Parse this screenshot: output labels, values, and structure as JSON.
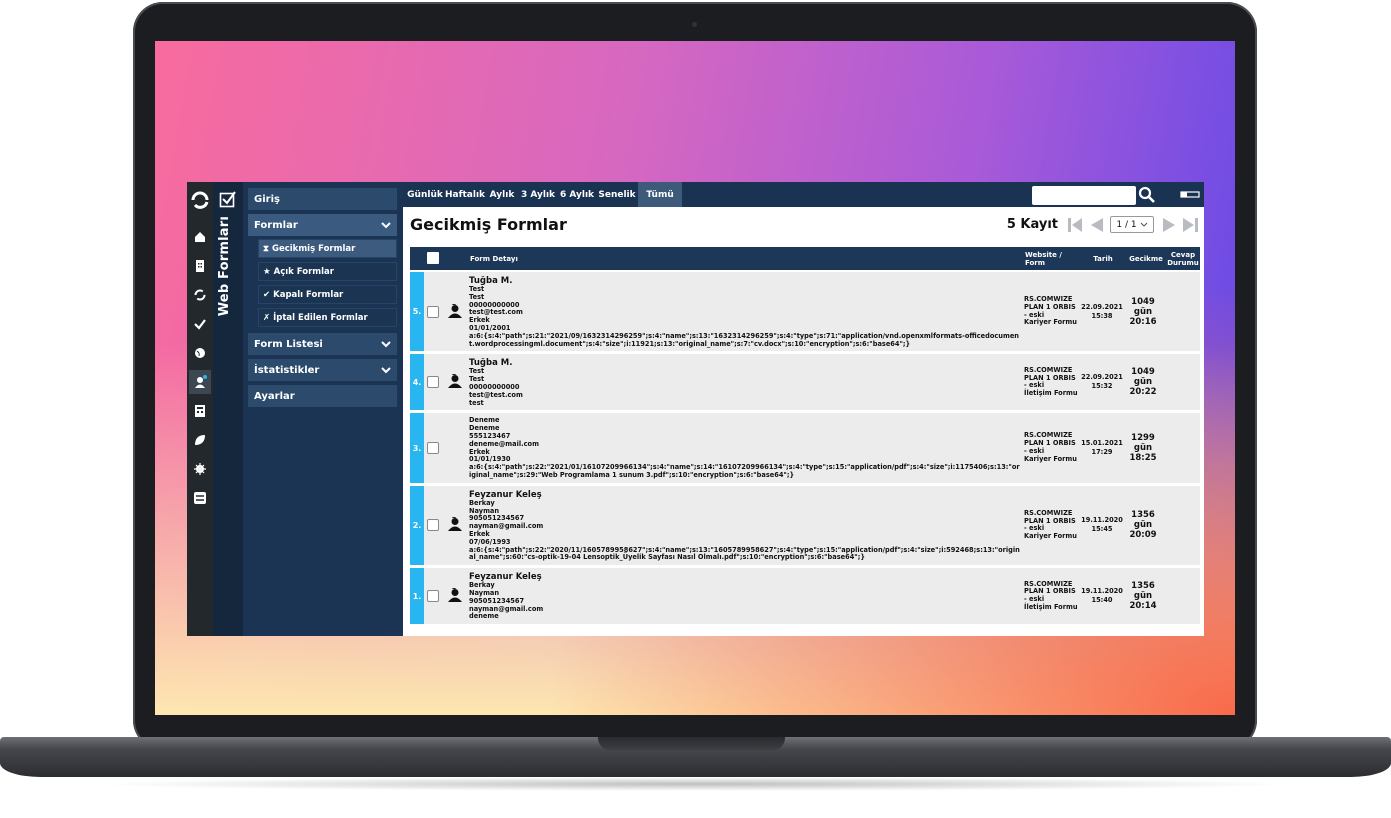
{
  "sidebar": {
    "title": "Web Formları",
    "menu": [
      {
        "label": "Giriş",
        "expandable": false
      },
      {
        "label": "Formlar",
        "expandable": true,
        "open": true,
        "items": [
          {
            "icon": "⧗",
            "label": "Gecikmiş Formlar",
            "active": true
          },
          {
            "icon": "★",
            "label": "Açık Formlar"
          },
          {
            "icon": "✔",
            "label": "Kapalı Formlar"
          },
          {
            "icon": "✗",
            "label": "İptal Edilen Formlar"
          }
        ]
      },
      {
        "label": "Form Listesi",
        "expandable": true
      },
      {
        "label": "İstatistikler",
        "expandable": true
      },
      {
        "label": "Ayarlar",
        "expandable": false
      }
    ]
  },
  "tabs": {
    "items": [
      "Günlük",
      "Haftalık",
      "Aylık",
      "3 Aylık",
      "6 Aylık",
      "Senelik",
      "Tümü"
    ],
    "active": 6
  },
  "header": {
    "title": "Gecikmiş Formlar",
    "count": "5 Kayıt",
    "page": "1 / 1"
  },
  "table": {
    "columns": [
      "Form Detayı",
      "Website / Form",
      "Tarih",
      "Gecikme",
      "Cevap Durumu"
    ],
    "rows": [
      {
        "index": "5.",
        "name": "Tuğba M.",
        "lines": [
          "Test",
          "Test",
          "00000000000",
          "test@test.com",
          "Erkek",
          "01/01/2001",
          "a:6:{s:4:\"path\";s:21:\"2021/09/1632314296259\";s:4:\"name\";s:13:\"1632314296259\";s:4:\"type\";s:71:\"application/vnd.openxmlformats-officedocument.wordprocessingml.document\";s:4:\"size\";i:11921;s:13:\"original_name\";s:7:\"cv.docx\";s:10:\"encryption\";s:6:\"base64\";}"
        ],
        "website": [
          "RS.COMWIZE",
          "PLAN 1 ORBIS",
          "- eski",
          "Kariyer Formu"
        ],
        "date": [
          "22.09.2021",
          "15:38"
        ],
        "delay": [
          "1049",
          "gün",
          "20:16"
        ]
      },
      {
        "index": "4.",
        "name": "Tuğba M.",
        "lines": [
          "Test",
          "Test",
          "00000000000",
          "test@test.com",
          "test"
        ],
        "website": [
          "RS.COMWIZE",
          "PLAN 1 ORBIS",
          "- eski",
          "İletişim Formu"
        ],
        "date": [
          "22.09.2021",
          "15:32"
        ],
        "delay": [
          "1049",
          "gün",
          "20:22"
        ]
      },
      {
        "index": "3.",
        "name": null,
        "lines": [
          "Deneme",
          "Deneme",
          "555123467",
          "deneme@mail.com",
          "Erkek",
          "01/01/1930",
          "a:6:{s:4:\"path\";s:22:\"2021/01/16107209966134\";s:4:\"name\";s:14:\"16107209966134\";s:4:\"type\";s:15:\"application/pdf\";s:4:\"size\";i:1175406;s:13:\"original_name\";s:29:\"Web Programlama 1 sunum 3.pdf\";s:10:\"encryption\";s:6:\"base64\";}"
        ],
        "website": [
          "RS.COMWIZE",
          "PLAN 1 ORBIS",
          "- eski",
          "Kariyer Formu"
        ],
        "date": [
          "15.01.2021",
          "17:29"
        ],
        "delay": [
          "1299",
          "gün",
          "18:25"
        ]
      },
      {
        "index": "2.",
        "name": "Feyzanur Keleş",
        "lines": [
          "Berkay",
          "Nayman",
          "905051234567",
          "nayman@gmail.com",
          "Erkek",
          "07/06/1993",
          "a:6:{s:4:\"path\";s:22:\"2020/11/1605789958627\";s:4:\"name\";s:13:\"1605789958627\";s:4:\"type\";s:15:\"application/pdf\";s:4:\"size\";i:592468;s:13:\"original_name\";s:60:\"cs-optik-19-04 Lensoptik_Üyelik Sayfası Nasıl Olmalı.pdf\";s:10:\"encryption\";s:6:\"base64\";}"
        ],
        "website": [
          "RS.COMWIZE",
          "PLAN 1 ORBIS",
          "- eski",
          "Kariyer Formu"
        ],
        "date": [
          "19.11.2020",
          "15:45"
        ],
        "delay": [
          "1356",
          "gün",
          "20:09"
        ]
      },
      {
        "index": "1.",
        "name": "Feyzanur Keleş",
        "lines": [
          "Berkay",
          "Nayman",
          "905051234567",
          "nayman@gmail.com",
          "deneme"
        ],
        "website": [
          "RS.COMWIZE",
          "PLAN 1 ORBIS",
          "- eski",
          "İletişim Formu"
        ],
        "date": [
          "19.11.2020",
          "15:40"
        ],
        "delay": [
          "1356",
          "gün",
          "20:14"
        ]
      }
    ]
  }
}
